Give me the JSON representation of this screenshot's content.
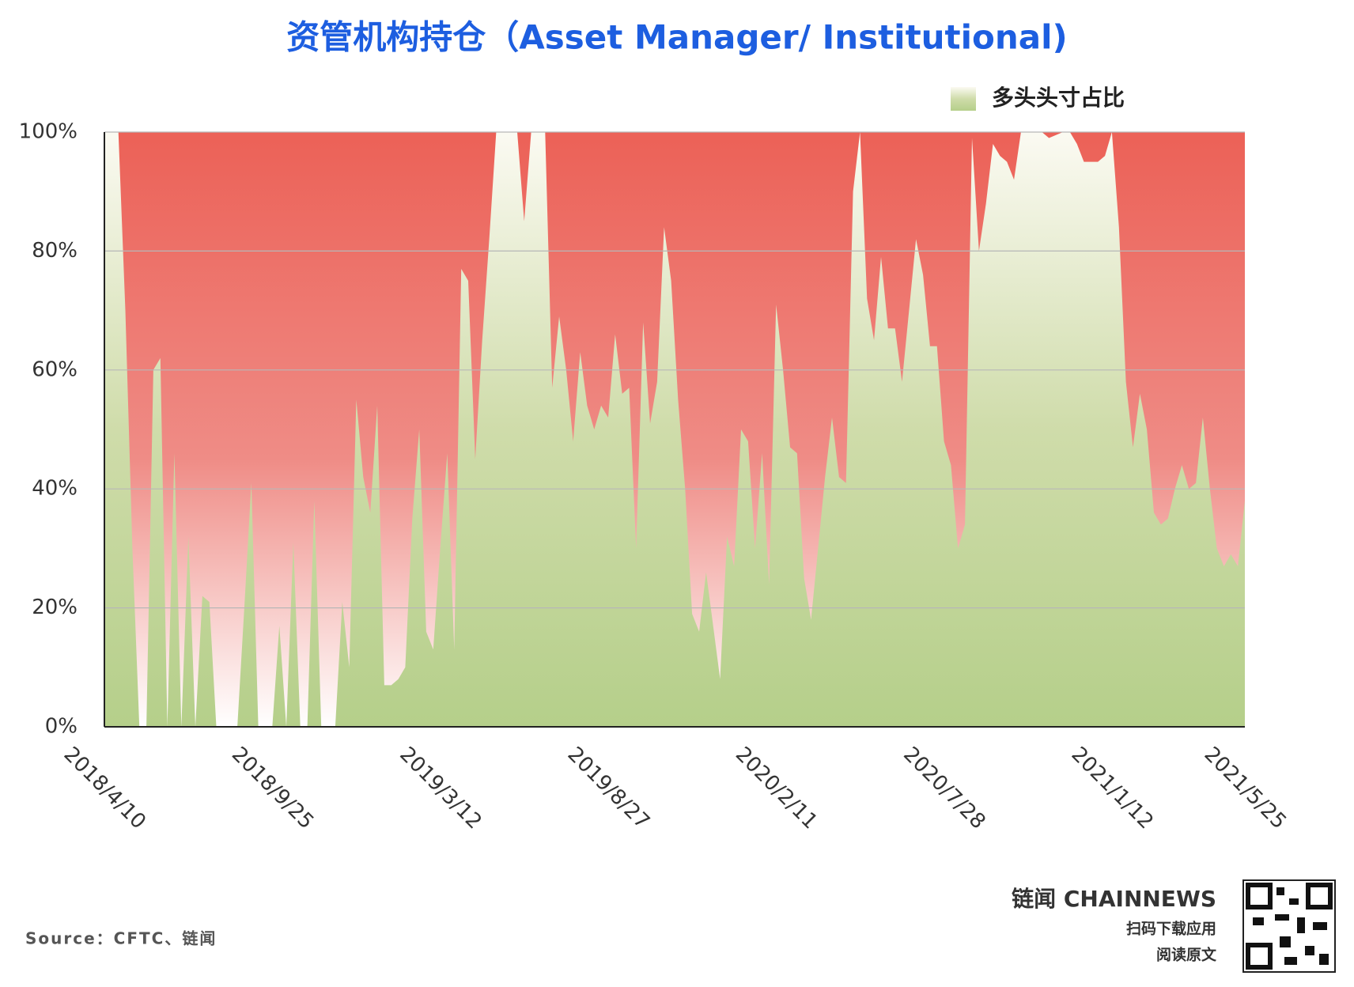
{
  "chart_data": {
    "type": "area",
    "title": "资管机构持仓（Asset Manager/ Institutional)",
    "categories": [
      "2018/4/10",
      null,
      null,
      null,
      null,
      null,
      null,
      null,
      null,
      null,
      null,
      null,
      null,
      null,
      null,
      null,
      null,
      null,
      null,
      null,
      null,
      null,
      null,
      null,
      "2018/9/25",
      null,
      null,
      null,
      null,
      null,
      null,
      null,
      null,
      null,
      null,
      null,
      null,
      null,
      null,
      null,
      null,
      null,
      null,
      null,
      null,
      null,
      null,
      null,
      "2019/3/12",
      null,
      null,
      null,
      null,
      null,
      null,
      null,
      null,
      null,
      null,
      null,
      null,
      null,
      null,
      null,
      null,
      null,
      null,
      null,
      null,
      null,
      null,
      null,
      "2019/8/27",
      null,
      null,
      null,
      null,
      null,
      null,
      null,
      null,
      null,
      null,
      null,
      null,
      null,
      null,
      null,
      null,
      null,
      null,
      null,
      null,
      null,
      null,
      null,
      "2020/2/11",
      null,
      null,
      null,
      null,
      null,
      null,
      null,
      null,
      null,
      null,
      null,
      null,
      null,
      null,
      null,
      null,
      null,
      null,
      null,
      null,
      null,
      null,
      null,
      "2020/7/28",
      null,
      null,
      null,
      null,
      null,
      null,
      null,
      null,
      null,
      null,
      null,
      null,
      null,
      null,
      null,
      null,
      null,
      null,
      null,
      null,
      null,
      null,
      null,
      "2021/1/12",
      null,
      null,
      null,
      null,
      null,
      null,
      null,
      null,
      null,
      null,
      null,
      null,
      null,
      null,
      null,
      null,
      null,
      null,
      "2021/5/25"
    ],
    "series": [
      {
        "name": "多头头寸占比",
        "color": "#b5cf8a",
        "values": [
          100,
          100,
          100,
          70,
          30,
          0,
          0,
          60,
          62,
          0,
          46,
          0,
          32,
          0,
          22,
          21,
          0,
          0,
          0,
          0,
          20,
          41,
          0,
          0,
          0,
          17,
          0,
          31,
          0,
          0,
          38,
          0,
          0,
          0,
          21,
          10,
          55,
          42,
          36,
          54,
          7,
          7,
          8,
          10,
          35,
          50,
          16,
          13,
          30,
          46,
          13,
          77,
          75,
          45,
          65,
          82,
          100,
          100,
          100,
          100,
          85,
          100,
          100,
          100,
          57,
          69,
          60,
          48,
          63,
          54,
          50,
          54,
          52,
          66,
          56,
          57,
          30,
          68,
          51,
          58,
          84,
          75,
          55,
          40,
          19,
          16,
          26,
          17,
          8,
          32,
          27,
          50,
          48,
          30,
          46,
          24,
          71,
          60,
          47,
          46,
          25,
          18,
          30,
          42,
          52,
          42,
          41,
          90,
          100,
          72,
          65,
          79,
          67,
          67,
          58,
          70,
          82,
          76,
          64,
          64,
          48,
          44,
          30,
          34,
          99,
          80,
          88,
          98,
          96,
          95,
          92,
          100,
          100,
          100,
          100,
          99,
          99.5,
          100,
          100,
          98,
          95,
          95,
          95,
          96,
          100,
          84,
          58,
          47,
          56,
          50,
          36,
          34,
          35,
          40,
          44,
          40,
          41,
          52,
          40,
          30,
          27,
          29,
          27,
          38
        ]
      }
    ],
    "ylim": [
      0,
      100
    ],
    "yticks": [
      {
        "value": 0,
        "label": "0%"
      },
      {
        "value": 20,
        "label": "20%"
      },
      {
        "value": 40,
        "label": "40%"
      },
      {
        "value": 60,
        "label": "60%"
      },
      {
        "value": 80,
        "label": "80%"
      },
      {
        "value": 100,
        "label": "100%"
      }
    ],
    "grid": true,
    "background_color": "#ec6157",
    "legend": "top-right",
    "source": "Source：CFTC、链闻",
    "brand": "链闻 CHAINNEWS",
    "brand_line1": "扫码下载应用",
    "brand_line2": "阅读原文"
  }
}
